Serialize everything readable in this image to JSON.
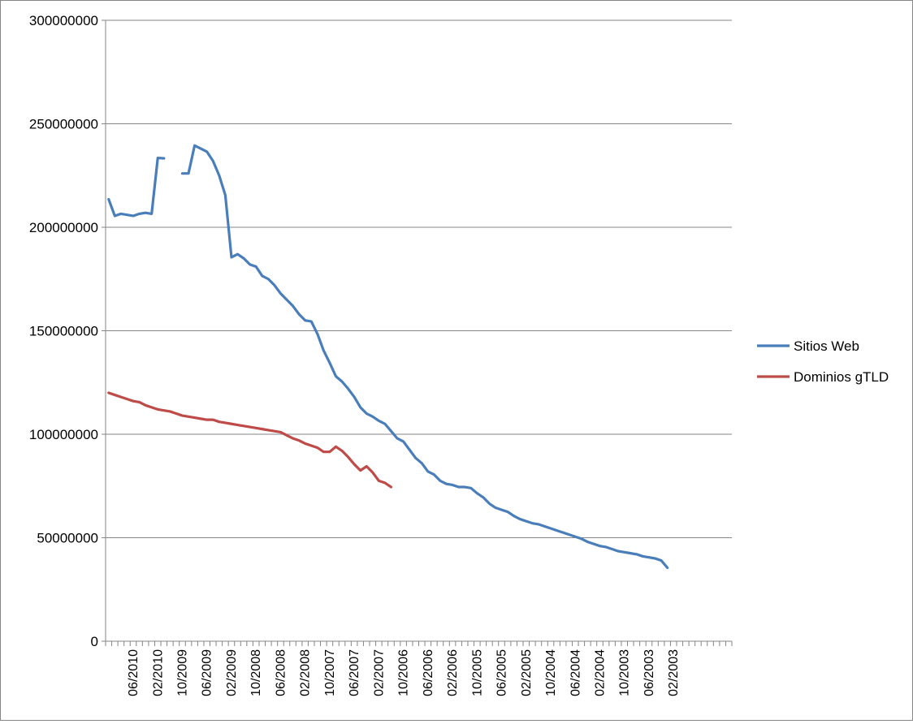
{
  "chart_data": {
    "type": "line",
    "title": "",
    "xlabel": "",
    "ylabel": "",
    "ylim": [
      0,
      300000000
    ],
    "yticks": [
      0,
      50000000,
      100000000,
      150000000,
      200000000,
      250000000,
      300000000
    ],
    "ytick_labels": [
      "0",
      "50000000",
      "100000000",
      "150000000",
      "200000000",
      "250000000",
      "300000000"
    ],
    "x_categories_count": 102,
    "x_order": "reverse-chronological",
    "xtick_labels": [
      {
        "index": 4,
        "label": "06/2010"
      },
      {
        "index": 8,
        "label": "02/2010"
      },
      {
        "index": 12,
        "label": "10/2009"
      },
      {
        "index": 16,
        "label": "06/2009"
      },
      {
        "index": 20,
        "label": "02/2009"
      },
      {
        "index": 24,
        "label": "10/2008"
      },
      {
        "index": 28,
        "label": "06/2008"
      },
      {
        "index": 32,
        "label": "02/2008"
      },
      {
        "index": 36,
        "label": "10/2007"
      },
      {
        "index": 40,
        "label": "06/2007"
      },
      {
        "index": 44,
        "label": "02/2007"
      },
      {
        "index": 48,
        "label": "10/2006"
      },
      {
        "index": 52,
        "label": "06/2006"
      },
      {
        "index": 56,
        "label": "02/2006"
      },
      {
        "index": 60,
        "label": "10/2005"
      },
      {
        "index": 64,
        "label": "06/2005"
      },
      {
        "index": 68,
        "label": "02/2005"
      },
      {
        "index": 72,
        "label": "10/2004"
      },
      {
        "index": 76,
        "label": "06/2004"
      },
      {
        "index": 80,
        "label": "02/2004"
      },
      {
        "index": 84,
        "label": "10/2003"
      },
      {
        "index": 88,
        "label": "06/2003"
      },
      {
        "index": 92,
        "label": "02/2003"
      }
    ],
    "legend_position": "right",
    "grid": "horizontal",
    "series": [
      {
        "name": "Sitios Web",
        "color": "#4a7ebb",
        "values": [
          213500000,
          205500000,
          206500000,
          206000000,
          205500000,
          206500000,
          207000000,
          206500000,
          233500000,
          233300000,
          null,
          null,
          226000000,
          226000000,
          239500000,
          238000000,
          236500000,
          232000000,
          225000000,
          215500000,
          185500000,
          187000000,
          185000000,
          182000000,
          181000000,
          176500000,
          175000000,
          172000000,
          168000000,
          165000000,
          162000000,
          158000000,
          155000000,
          154500000,
          148500000,
          140500000,
          134500000,
          128000000,
          125500000,
          122000000,
          118000000,
          113000000,
          110000000,
          108500000,
          106500000,
          105000000,
          101500000,
          98000000,
          96500000,
          92500000,
          88500000,
          86000000,
          82000000,
          80500000,
          77500000,
          76000000,
          75500000,
          74500000,
          74500000,
          74000000,
          71500000,
          69500000,
          66500000,
          64500000,
          63500000,
          62500000,
          60500000,
          59000000,
          58000000,
          57000000,
          56500000,
          55500000,
          54500000,
          53500000,
          52500000,
          51500000,
          50500000,
          49500000,
          48000000,
          47000000,
          46000000,
          45500000,
          44500000,
          43500000,
          43000000,
          42500000,
          42000000,
          41000000,
          40500000,
          40000000,
          39000000,
          35500000
        ]
      },
      {
        "name": "Dominios gTLD",
        "color": "#be4b48",
        "values": [
          120000000,
          119000000,
          118000000,
          117000000,
          116000000,
          115500000,
          114000000,
          113000000,
          112000000,
          111500000,
          111000000,
          110000000,
          109000000,
          108500000,
          108000000,
          107500000,
          107000000,
          107000000,
          106000000,
          105500000,
          105000000,
          104500000,
          104000000,
          103500000,
          103000000,
          102500000,
          102000000,
          101500000,
          101000000,
          99500000,
          98000000,
          97000000,
          95500000,
          94500000,
          93500000,
          91500000,
          91500000,
          94000000,
          92000000,
          89000000,
          85500000,
          82500000,
          84500000,
          81500000,
          77500000,
          76500000,
          74500000
        ]
      }
    ]
  }
}
